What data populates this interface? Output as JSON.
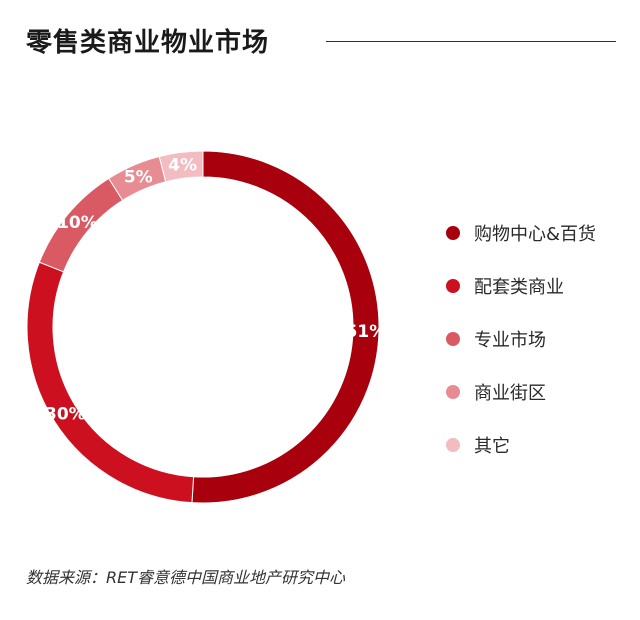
{
  "title": "零售类商业物业市场",
  "source": "数据来源：RET睿意德中国商业地产研究中心",
  "chart_data": {
    "type": "pie",
    "style": "donut",
    "categories": [
      "购物中心&百货",
      "配套类商业",
      "专业市场",
      "商业街区",
      "其它"
    ],
    "values": [
      51,
      30,
      10,
      5,
      4
    ],
    "value_labels": [
      "51%",
      "30%",
      "10%",
      "5%",
      "4%"
    ],
    "colors": [
      "#a8000c",
      "#cc1020",
      "#d95a63",
      "#e78c93",
      "#f2bcc0"
    ],
    "legend_position": "right"
  }
}
